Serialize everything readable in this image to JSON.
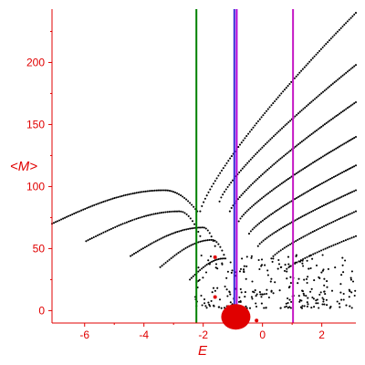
{
  "chart_data": {
    "type": "scatter",
    "title": "",
    "xlabel": "E",
    "ylabel": "<M>",
    "xlim": [
      -7.1,
      3.15
    ],
    "ylim": [
      -10,
      243
    ],
    "xticks": [
      -6,
      -4,
      -2,
      0,
      2
    ],
    "yticks": [
      0,
      50,
      100,
      150,
      200
    ],
    "grid": false,
    "colors": {
      "axes": "#e00000",
      "points": "#000000",
      "green_line": "#008000",
      "blue_line": "#3a2bd6",
      "purple_line": "#b000d8",
      "magenta_line": "#c418c4",
      "red_marker": "#e00000"
    },
    "vertical_lines": [
      {
        "x": -2.23,
        "color": "#008000"
      },
      {
        "x": -0.95,
        "color": "#3a2bd6"
      },
      {
        "x": -0.87,
        "color": "#b000d8"
      },
      {
        "x": 1.03,
        "color": "#c418c4"
      }
    ],
    "curves": [
      {
        "x_start": -7.1,
        "x_end": -2.2,
        "y_start": 70,
        "y_end": 80,
        "peak": 97,
        "peak_x": -3.3,
        "n": 80
      },
      {
        "x_start": -5.95,
        "x_end": -2.1,
        "y_start": 56,
        "y_end": 60,
        "peak": 80,
        "peak_x": -2.8,
        "n": 60
      },
      {
        "x_start": -4.45,
        "x_end": -1.6,
        "y_start": 44,
        "y_end": 52,
        "peak": 67,
        "peak_x": -2.0,
        "n": 48
      },
      {
        "x_start": -3.45,
        "x_end": -1.3,
        "y_start": 35,
        "y_end": 45,
        "peak": 57,
        "peak_x": -1.7,
        "n": 36
      },
      {
        "x_start": -2.45,
        "x_end": -1.25,
        "y_start": 25,
        "y_end": 42,
        "peak": 42,
        "peak_x": -1.3,
        "n": 22
      },
      {
        "x_start": -2.1,
        "x_end": 3.15,
        "y_start": 80,
        "y_end": 240,
        "n": 95
      },
      {
        "x_start": -1.45,
        "x_end": 3.15,
        "y_start": 88,
        "y_end": 198,
        "n": 84
      },
      {
        "x_start": -1.1,
        "x_end": 3.15,
        "y_start": 80,
        "y_end": 168,
        "n": 78
      },
      {
        "x_start": -0.8,
        "x_end": 3.15,
        "y_start": 72,
        "y_end": 140,
        "n": 72
      },
      {
        "x_start": -0.45,
        "x_end": 3.15,
        "y_start": 62,
        "y_end": 117,
        "n": 64
      },
      {
        "x_start": -0.15,
        "x_end": 3.15,
        "y_start": 52,
        "y_end": 97,
        "n": 56
      },
      {
        "x_start": 0.3,
        "x_end": 3.15,
        "y_start": 42,
        "y_end": 80,
        "n": 46
      },
      {
        "x_start": 0.75,
        "x_end": 3.15,
        "y_start": 32,
        "y_end": 60,
        "n": 36
      }
    ],
    "scatter_cloud": {
      "x_range": [
        -2.3,
        3.15
      ],
      "y_range": [
        2,
        45
      ],
      "n": 260
    },
    "red_markers": [
      {
        "x": -0.9,
        "y": -5,
        "size": "large"
      },
      {
        "x": -1.6,
        "y": 43,
        "size": "small"
      },
      {
        "x": -1.6,
        "y": 11,
        "size": "small"
      },
      {
        "x": -1.15,
        "y": 3,
        "size": "small"
      },
      {
        "x": -0.2,
        "y": -8,
        "size": "small"
      }
    ]
  }
}
